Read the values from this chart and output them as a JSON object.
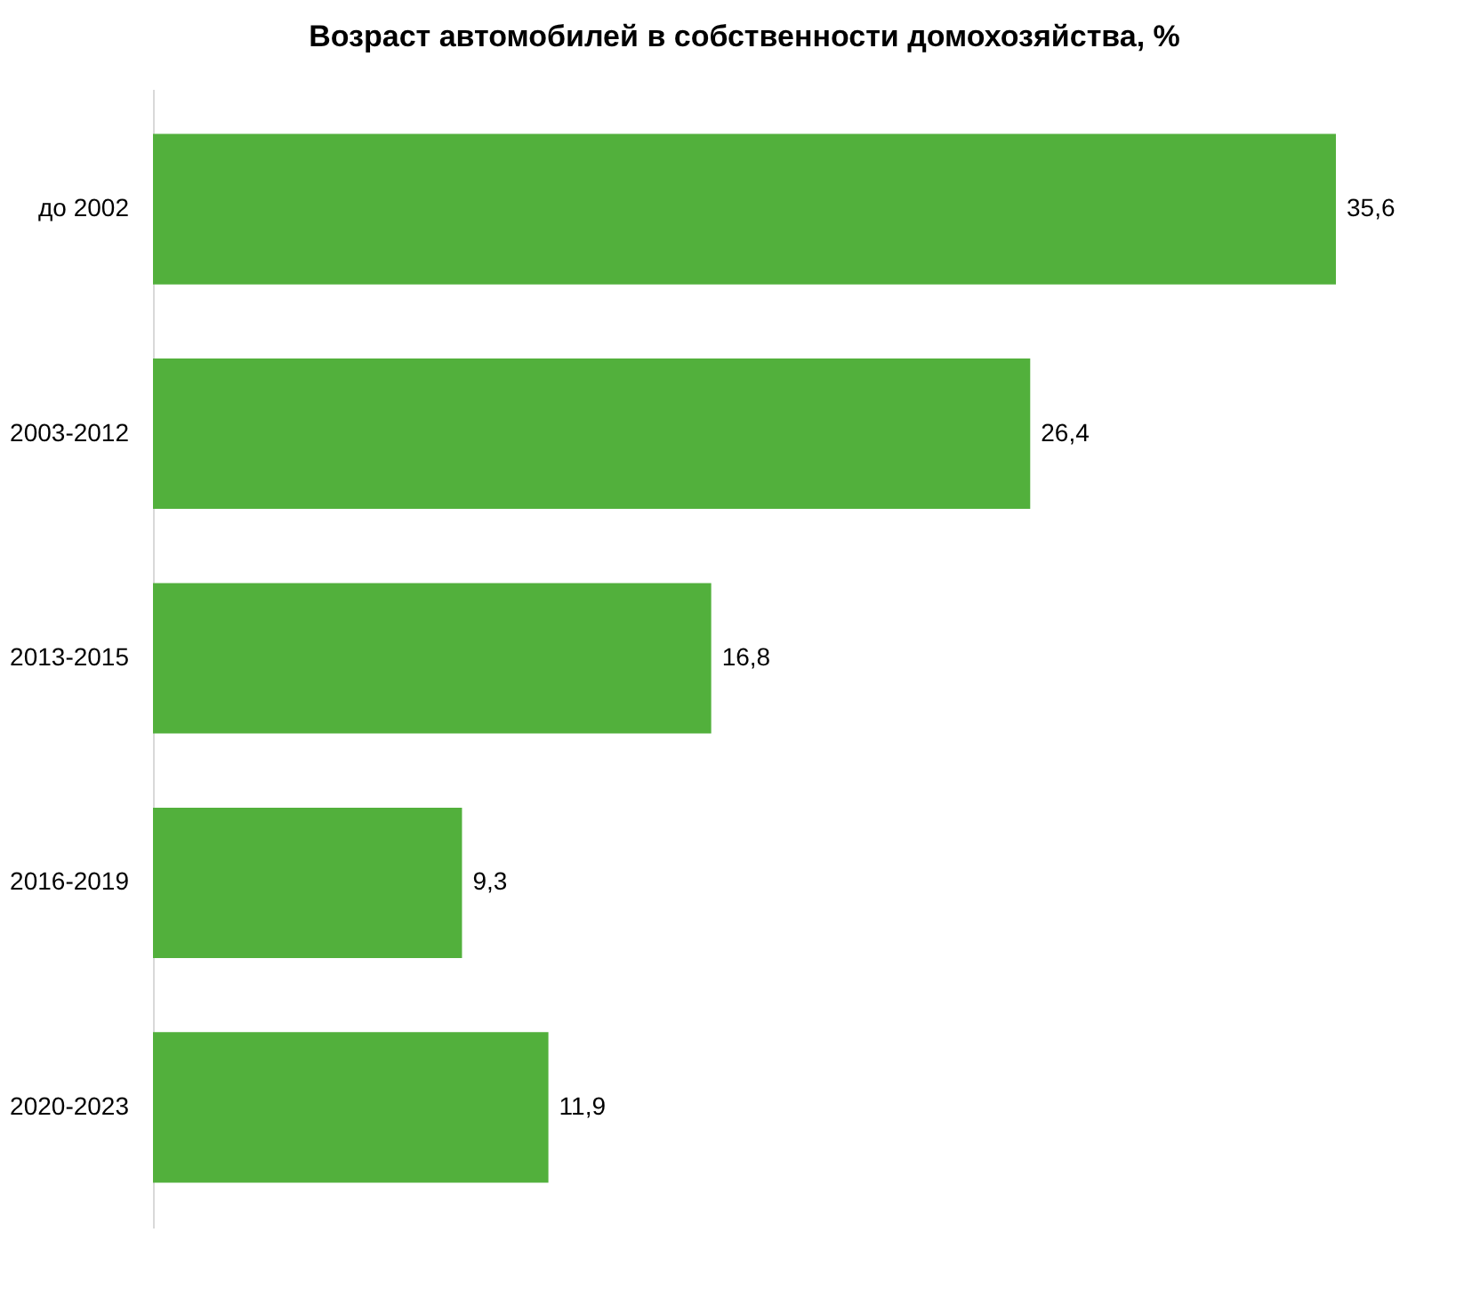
{
  "chart_data": {
    "type": "bar",
    "orientation": "horizontal",
    "title": "Возраст автомобилей в собственности домохозяйства, %",
    "categories": [
      "до 2002",
      "2003-2012",
      "2013-2015",
      "2016-2019",
      "2020-2023"
    ],
    "values": [
      35.6,
      26.4,
      16.8,
      9.3,
      11.9
    ],
    "value_labels": [
      "35,6",
      "26,4",
      "16,8",
      "9,3",
      "11,9"
    ],
    "color": "#52b03c",
    "grid": false,
    "tick_labels": "y"
  }
}
